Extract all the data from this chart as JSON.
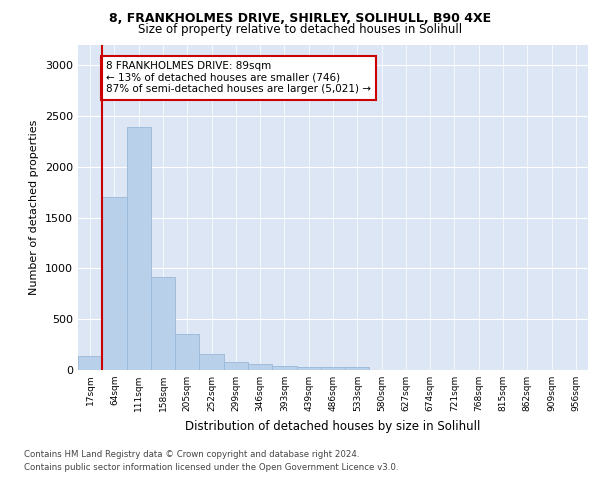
{
  "title_line1": "8, FRANKHOLMES DRIVE, SHIRLEY, SOLIHULL, B90 4XE",
  "title_line2": "Size of property relative to detached houses in Solihull",
  "xlabel": "Distribution of detached houses by size in Solihull",
  "ylabel": "Number of detached properties",
  "bar_values": [
    140,
    1700,
    2390,
    920,
    350,
    160,
    80,
    55,
    35,
    25,
    25,
    25,
    0,
    0,
    0,
    0,
    0,
    0,
    0,
    0,
    0
  ],
  "bar_labels": [
    "17sqm",
    "64sqm",
    "111sqm",
    "158sqm",
    "205sqm",
    "252sqm",
    "299sqm",
    "346sqm",
    "393sqm",
    "439sqm",
    "486sqm",
    "533sqm",
    "580sqm",
    "627sqm",
    "674sqm",
    "721sqm",
    "768sqm",
    "815sqm",
    "862sqm",
    "909sqm",
    "956sqm"
  ],
  "bar_color": "#b8d0ea",
  "bar_edge_color": "#9ab8d8",
  "vline_x": 1.0,
  "vline_color": "#cc0000",
  "annotation_text": "8 FRANKHOLMES DRIVE: 89sqm\n← 13% of detached houses are smaller (746)\n87% of semi-detached houses are larger (5,021) →",
  "annotation_box_color": "#ffffff",
  "annotation_box_edge_color": "#cc0000",
  "ylim": [
    0,
    3200
  ],
  "yticks": [
    0,
    500,
    1000,
    1500,
    2000,
    2500,
    3000
  ],
  "background_color": "#dce6f5",
  "footer_line1": "Contains HM Land Registry data © Crown copyright and database right 2024.",
  "footer_line2": "Contains public sector information licensed under the Open Government Licence v3.0."
}
